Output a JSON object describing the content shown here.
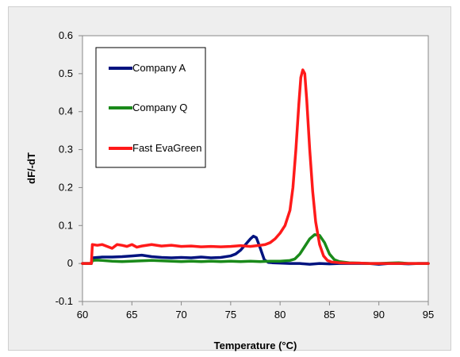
{
  "chart_data": {
    "type": "line",
    "xlabel": "Temperature (°C)",
    "ylabel": "dF/-dT",
    "xlim": [
      60,
      95
    ],
    "ylim": [
      -0.1,
      0.6
    ],
    "xticks": [
      60,
      65,
      70,
      75,
      80,
      85,
      90,
      95
    ],
    "yticks": [
      -0.1,
      0,
      0.1,
      0.2,
      0.3,
      0.4,
      0.5,
      0.6
    ],
    "xtick_labels": [
      "60",
      "65",
      "70",
      "75",
      "80",
      "85",
      "90",
      "95"
    ],
    "ytick_labels": [
      "-0.1",
      "0",
      "0.1",
      "0.2",
      "0.3",
      "0.4",
      "0.5",
      "0.6"
    ],
    "grid": false,
    "legend_position": "top-left",
    "series": [
      {
        "name": "Company A",
        "color": "#00137f",
        "x": [
          60,
          60.9,
          61.0,
          61.5,
          62,
          63,
          64,
          65,
          66,
          67,
          68,
          69,
          70,
          71,
          72,
          73,
          74,
          75,
          75.5,
          76,
          76.5,
          77,
          77.3,
          77.6,
          78,
          78.4,
          78.8,
          79.2,
          80,
          81,
          82,
          83,
          84,
          85,
          86,
          87,
          88,
          89,
          90,
          91,
          92,
          93,
          94,
          95
        ],
        "y": [
          0,
          0,
          0.015,
          0.016,
          0.017,
          0.017,
          0.018,
          0.02,
          0.022,
          0.018,
          0.016,
          0.015,
          0.016,
          0.015,
          0.017,
          0.015,
          0.016,
          0.02,
          0.025,
          0.035,
          0.05,
          0.065,
          0.072,
          0.068,
          0.04,
          0.01,
          0.003,
          0.002,
          0.001,
          0,
          0,
          -0.002,
          0,
          -0.001,
          0,
          0,
          0,
          0,
          -0.002,
          0,
          0,
          -0.001,
          0,
          0
        ]
      },
      {
        "name": "Company Q",
        "color": "#1a8a1a",
        "x": [
          60,
          60.9,
          61.0,
          61.5,
          62,
          63,
          64,
          65,
          66,
          67,
          68,
          69,
          70,
          71,
          72,
          73,
          74,
          75,
          76,
          77,
          78,
          79,
          80,
          81,
          81.5,
          82,
          82.5,
          83,
          83.5,
          84,
          84.5,
          85,
          85.5,
          86,
          87,
          88,
          89,
          90,
          91,
          92,
          93,
          94,
          95
        ],
        "y": [
          0,
          0,
          0.008,
          0.009,
          0.008,
          0.006,
          0.005,
          0.006,
          0.007,
          0.008,
          0.007,
          0.006,
          0.005,
          0.006,
          0.005,
          0.006,
          0.005,
          0.006,
          0.005,
          0.006,
          0.005,
          0.006,
          0.006,
          0.008,
          0.012,
          0.025,
          0.045,
          0.065,
          0.076,
          0.074,
          0.055,
          0.025,
          0.01,
          0.005,
          0.002,
          0.001,
          0,
          0,
          0.001,
          0.002,
          0,
          0,
          0
        ]
      },
      {
        "name": "Fast EvaGreen",
        "color": "#ff1a1a",
        "x": [
          60,
          60.9,
          61.0,
          61.5,
          62,
          62.5,
          63,
          63.5,
          64,
          64.5,
          65,
          65.5,
          66,
          67,
          68,
          69,
          70,
          71,
          72,
          73,
          74,
          75,
          76,
          77,
          78,
          78.5,
          79,
          79.5,
          80,
          80.5,
          81,
          81.3,
          81.6,
          81.9,
          82.1,
          82.3,
          82.5,
          82.7,
          83,
          83.3,
          83.6,
          84,
          84.4,
          84.8,
          85.2,
          86,
          87,
          88,
          89,
          90,
          91,
          92,
          93,
          94,
          95
        ],
        "y": [
          0,
          0,
          0.05,
          0.048,
          0.05,
          0.045,
          0.04,
          0.05,
          0.048,
          0.045,
          0.05,
          0.043,
          0.046,
          0.05,
          0.046,
          0.048,
          0.045,
          0.046,
          0.044,
          0.045,
          0.044,
          0.045,
          0.047,
          0.045,
          0.048,
          0.05,
          0.055,
          0.065,
          0.08,
          0.1,
          0.14,
          0.2,
          0.3,
          0.42,
          0.49,
          0.51,
          0.5,
          0.43,
          0.3,
          0.19,
          0.11,
          0.05,
          0.02,
          0.008,
          0.004,
          0.002,
          0.001,
          0.001,
          0,
          0,
          0,
          0,
          0,
          0,
          0
        ]
      }
    ]
  }
}
